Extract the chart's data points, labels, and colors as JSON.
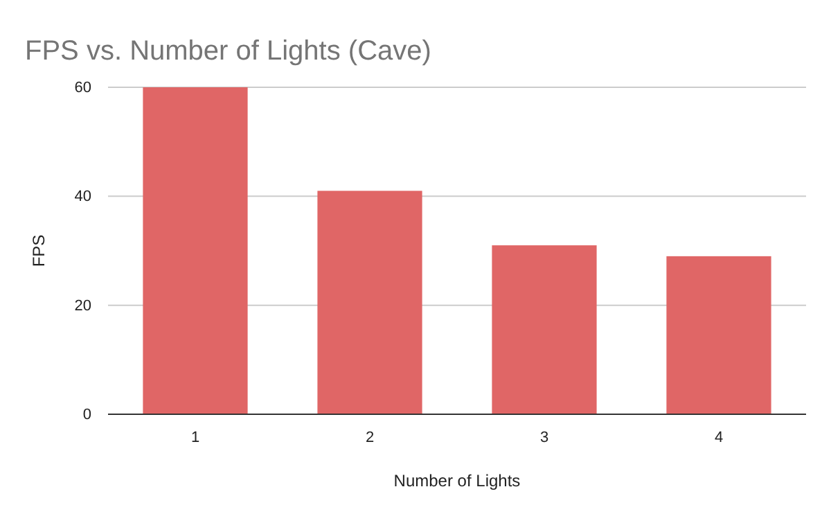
{
  "chart_data": {
    "type": "bar",
    "title": "FPS vs. Number of Lights (Cave)",
    "xlabel": "Number of Lights",
    "ylabel": "FPS",
    "categories": [
      "1",
      "2",
      "3",
      "4"
    ],
    "values": [
      60,
      41,
      31,
      29
    ],
    "color": "#e06666",
    "ylim": [
      0,
      60
    ],
    "yticks": [
      0,
      20,
      40,
      60
    ],
    "grid": "y"
  }
}
